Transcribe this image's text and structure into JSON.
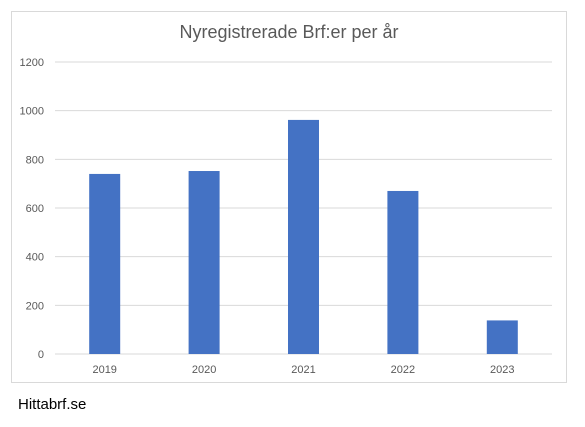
{
  "chart_data": {
    "type": "bar",
    "title": "Nyregistrerade Brf:er per år",
    "xlabel": "",
    "ylabel": "",
    "categories": [
      "2019",
      "2020",
      "2021",
      "2022",
      "2023"
    ],
    "values": [
      740,
      752,
      962,
      670,
      138
    ],
    "ylim": [
      0,
      1200
    ],
    "yticks": [
      "0",
      "200",
      "400",
      "600",
      "800",
      "1000",
      "1200"
    ],
    "grid": true,
    "legend": "none",
    "bar_color": "#4472c4",
    "grid_color": "#d9d9d9",
    "label_color": "#595959"
  },
  "footer": {
    "text": "Hittabrf.se"
  }
}
